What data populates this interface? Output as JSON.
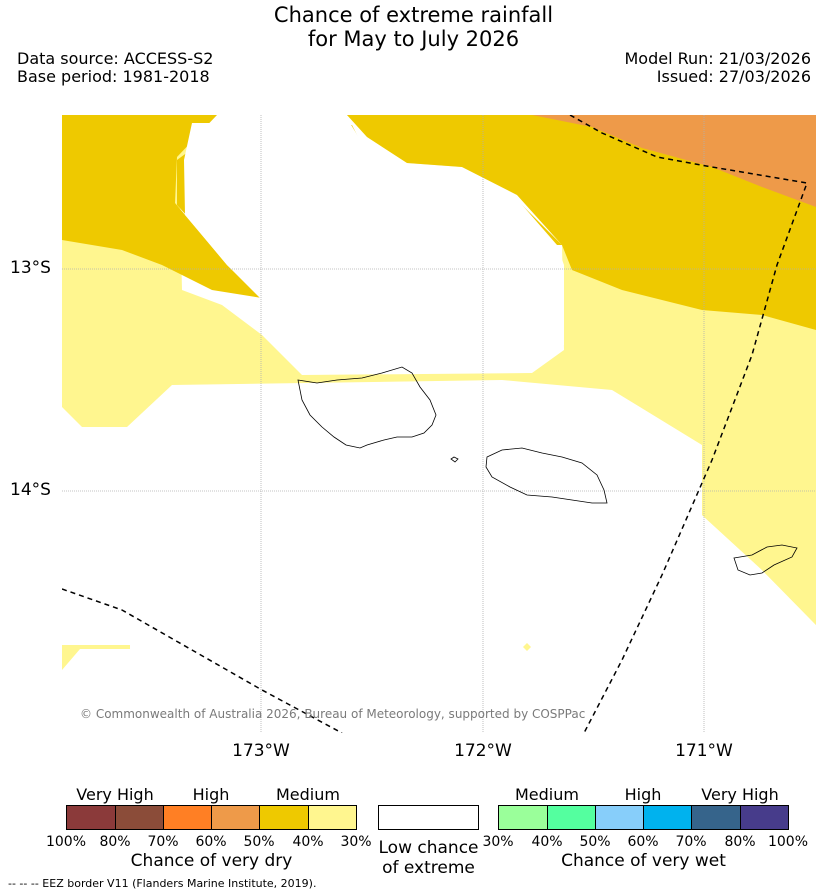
{
  "header": {
    "title_line1": "Chance of extreme rainfall",
    "title_line2": "for May to July 2026",
    "data_source": "Data source: ACCESS-S2",
    "base_period": "Base period: 1981-2018",
    "model_run": "Model Run: 21/03/2026",
    "issued": "Issued: 27/03/2026"
  },
  "map": {
    "lat_labels": [
      "13°S",
      "14°S"
    ],
    "lon_labels": [
      "173°W",
      "172°W",
      "171°W"
    ],
    "copyright": "© Commonwealth of Australia 2026, Bureau of Meteorology, supported by COSPPac",
    "colors": {
      "medium_dry_40_50": "#eec900",
      "medium_dry_30_40": "#fff68f",
      "high_dry_50_60": "#ee9a49",
      "low": "#ffffff"
    }
  },
  "legend": {
    "dry": {
      "categories": [
        "Very High",
        "High",
        "Medium"
      ],
      "ticks": [
        "100%",
        "80%",
        "70%",
        "60%",
        "50%",
        "40%",
        "30%"
      ],
      "colors": [
        "#8b3a3a",
        "#8b4c39",
        "#ff7f24",
        "#ee9a49",
        "#eec900",
        "#fff68f"
      ],
      "title": "Chance of very dry"
    },
    "low": {
      "title_line1": "Low chance",
      "title_line2": "of extreme",
      "color": "#ffffff"
    },
    "wet": {
      "categories": [
        "Medium",
        "High",
        "Very High"
      ],
      "ticks": [
        "30%",
        "40%",
        "50%",
        "60%",
        "70%",
        "80%",
        "100%"
      ],
      "colors": [
        "#9aff9a",
        "#54ff9f",
        "#87cefa",
        "#00b2ee",
        "#36648b",
        "#473c8b"
      ],
      "title": "Chance of very wet"
    }
  },
  "footer": {
    "eez_note": "--  --  -- EEZ border V11 (Flanders Marine Institute, 2019)."
  }
}
